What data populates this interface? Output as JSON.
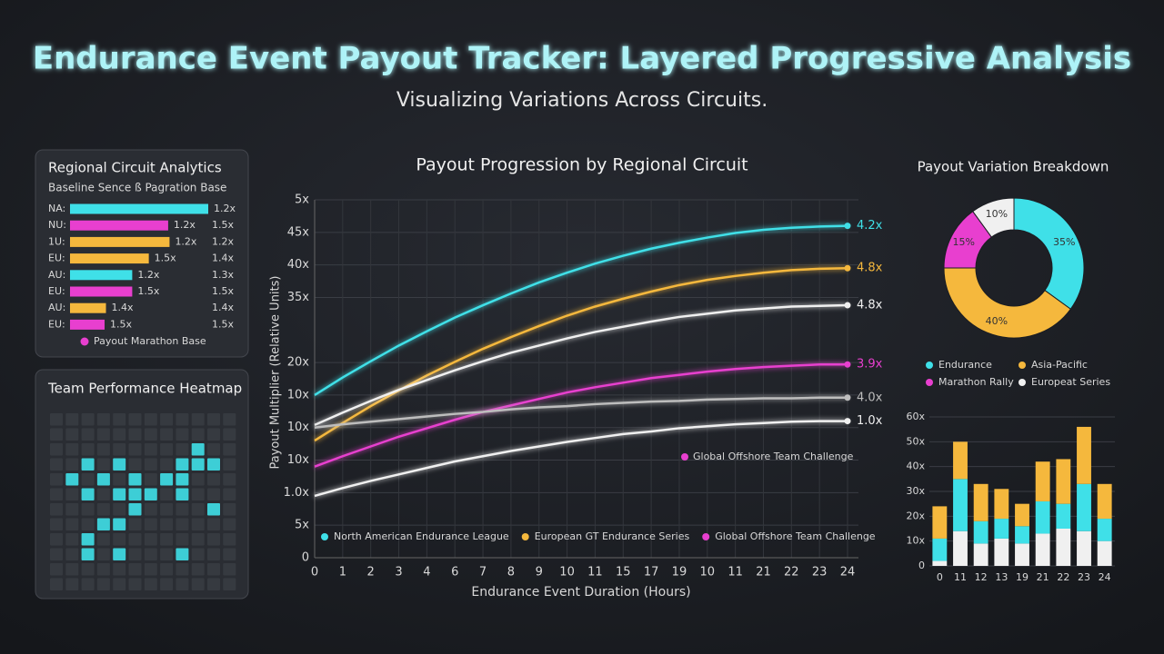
{
  "header": {
    "title": "Endurance Event Payout Tracker: Layered Progressive Analysis",
    "subtitle": "Visualizing Variations Across Circuits."
  },
  "circuit_panel": {
    "title": "Regional Circuit Analytics",
    "subtitle": "Baseline Sence ß Pagration Base",
    "xlim": [
      0,
      100
    ],
    "rows": [
      {
        "label": "NA:",
        "bar": 100,
        "color": "#3fe0e8",
        "bar_label": "1.2x"
      },
      {
        "label": "NU:",
        "bar": 71,
        "color": "#e83fcf",
        "bar_label": "1.2x",
        "value_label": "1.5x"
      },
      {
        "label": "1U:",
        "bar": 72,
        "color": "#f5b83d",
        "bar_label": "1.2x",
        "value_label": "1.2x"
      },
      {
        "label": "EU:",
        "bar": 57,
        "color": "#f5b83d",
        "bar_label": "1.5x",
        "value_label": "1.4x"
      },
      {
        "label": "AU:",
        "bar": 45,
        "color": "#3fe0e8",
        "bar_label": "1.2x",
        "value_label": "1.3x"
      },
      {
        "label": "EU:",
        "bar": 45,
        "color": "#e83fcf",
        "bar_label": "1.5x",
        "value_label": "1.5x"
      },
      {
        "label": "AU:",
        "bar": 26,
        "color": "#f5b83d",
        "bar_label": "1.4x",
        "value_label": "1.4x"
      },
      {
        "label": "EU:",
        "bar": 25,
        "color": "#e83fcf",
        "bar_label": "1.5x",
        "value_label": "1.5x"
      }
    ],
    "legend": {
      "label": "Payout Marathon Base",
      "color": "#e83fcf"
    }
  },
  "heatmap": {
    "title": "Team Performance Heatmap",
    "color": "#3fe0e8",
    "cells": [
      [
        0,
        0,
        0,
        0,
        0,
        0,
        0,
        0,
        0,
        0,
        0,
        0
      ],
      [
        0,
        0,
        0,
        0,
        0,
        0,
        0,
        0,
        0,
        0,
        0,
        0
      ],
      [
        0,
        0,
        0,
        0,
        0,
        0,
        0,
        0,
        0,
        1,
        0,
        0
      ],
      [
        0,
        0,
        1,
        0,
        1,
        0,
        0,
        0,
        1,
        1,
        1,
        0
      ],
      [
        0,
        1,
        0,
        1,
        0,
        1,
        0,
        1,
        1,
        0,
        0,
        0
      ],
      [
        0,
        0,
        1,
        0,
        1,
        1,
        1,
        0,
        1,
        0,
        0,
        0
      ],
      [
        0,
        0,
        0,
        0,
        0,
        1,
        0,
        0,
        0,
        0,
        1,
        0
      ],
      [
        0,
        0,
        0,
        1,
        1,
        0,
        0,
        0,
        0,
        0,
        0,
        0
      ],
      [
        0,
        0,
        1,
        0,
        0,
        0,
        0,
        0,
        0,
        0,
        0,
        0
      ],
      [
        0,
        0,
        1,
        0,
        1,
        0,
        0,
        0,
        1,
        0,
        0,
        0
      ],
      [
        0,
        0,
        0,
        0,
        0,
        0,
        0,
        0,
        0,
        0,
        0,
        0
      ],
      [
        0,
        0,
        0,
        0,
        0,
        0,
        0,
        0,
        0,
        0,
        0,
        0
      ]
    ]
  },
  "chart_data": [
    {
      "type": "line",
      "title": "Payout Progression by Regional Circuit",
      "x_label": "Endurance Event Duration (Hours)",
      "y_label": "Payout Multiplier (Relative Units)",
      "categories": [
        "0",
        "1",
        "2",
        "3",
        "4",
        "6",
        "7",
        "8",
        "9",
        "10",
        "11",
        "15",
        "17",
        "19",
        "10",
        "11",
        "21",
        "22",
        "23",
        "24"
      ],
      "ylim": [
        0,
        55
      ],
      "yticks": [
        {
          "value": 55,
          "label": "5x"
        },
        {
          "value": 50,
          "label": "45x"
        },
        {
          "value": 45,
          "label": "40x"
        },
        {
          "value": 40,
          "label": "35x"
        },
        {
          "value": 30,
          "label": "20x"
        },
        {
          "value": 25,
          "label": "10x"
        },
        {
          "value": 20,
          "label": "10x"
        },
        {
          "value": 15,
          "label": "10x"
        },
        {
          "value": 10,
          "label": "1.0x"
        },
        {
          "value": 5,
          "label": "5x"
        },
        0
      ],
      "grid": true,
      "series": [
        {
          "name": "North American Endurance League",
          "color": "#3fe0e8",
          "end_label": "4.2x",
          "values": [
            25,
            27.7,
            30.2,
            32.6,
            34.8,
            36.9,
            38.8,
            40.6,
            42.3,
            43.8,
            45.2,
            46.4,
            47.5,
            48.4,
            49.2,
            49.9,
            50.4,
            50.7,
            50.9,
            51
          ]
        },
        {
          "name": "European GT Endurance Series",
          "color": "#f5b83d",
          "end_label": "4.8x",
          "values": [
            18,
            20.7,
            23.3,
            25.7,
            28,
            30.1,
            32.1,
            33.9,
            35.6,
            37.2,
            38.6,
            39.8,
            40.9,
            41.9,
            42.7,
            43.3,
            43.8,
            44.2,
            44.4,
            44.5
          ]
        },
        {
          "name": null,
          "color": "#f0f0f0",
          "end_label": "4.8x",
          "values": [
            20.4,
            22.3,
            24.1,
            25.8,
            27.3,
            28.8,
            30.2,
            31.5,
            32.6,
            33.7,
            34.7,
            35.5,
            36.3,
            37,
            37.5,
            38,
            38.3,
            38.6,
            38.7,
            38.8
          ]
        },
        {
          "name": "Global Offshore Team Challenge",
          "color": "#e83fcf",
          "end_label": "3.9x",
          "values": [
            14,
            15.6,
            17.1,
            18.6,
            19.9,
            21.2,
            22.4,
            23.4,
            24.4,
            25.4,
            26.2,
            26.9,
            27.6,
            28.1,
            28.6,
            29,
            29.3,
            29.5,
            29.7,
            29.7
          ]
        },
        {
          "name": null,
          "color": "#bdbdbd",
          "end_label": "4.0x",
          "values": [
            20,
            20.5,
            20.9,
            21.3,
            21.7,
            22.1,
            22.4,
            22.8,
            23.1,
            23.3,
            23.6,
            23.8,
            24,
            24.1,
            24.3,
            24.4,
            24.5,
            24.5,
            24.6,
            24.6
          ]
        },
        {
          "name": null,
          "color": "#f0f0f0",
          "end_label": "1.0x",
          "values": [
            9.5,
            10.7,
            11.8,
            12.8,
            13.8,
            14.8,
            15.6,
            16.4,
            17.1,
            17.8,
            18.4,
            19,
            19.4,
            19.9,
            20.2,
            20.5,
            20.7,
            20.9,
            21,
            21
          ]
        }
      ],
      "annotation": {
        "text": "Global Offshore Team Challenge",
        "color": "#e83fcf"
      },
      "legend": "bottom-left"
    },
    {
      "type": "pie",
      "title": "Payout Variation Breakdown",
      "donut": true,
      "categories": [
        "Endurance",
        "Asia-Pacific",
        "Marathon Rally",
        "Europeat Series"
      ],
      "values": [
        35,
        40,
        15,
        10
      ],
      "value_labels": [
        "35%",
        "40%",
        "15%",
        "10%"
      ],
      "colors": [
        "#3fe0e8",
        "#f5b83d",
        "#e83fcf",
        "#f0f0f0"
      ]
    },
    {
      "type": "stacked_bar",
      "categories": [
        "0",
        "11",
        "12",
        "13",
        "19",
        "21",
        "22",
        "23",
        "24"
      ],
      "ylim": [
        0,
        60
      ],
      "yticks": [
        0,
        {
          "value": 10,
          "label": "10x"
        },
        {
          "value": 20,
          "label": "20x"
        },
        {
          "value": 30,
          "label": "30x"
        },
        {
          "value": 40,
          "label": "40x"
        },
        {
          "value": 50,
          "label": "50x"
        },
        {
          "value": 60,
          "label": "60x"
        }
      ],
      "series": [
        {
          "color": "#f0f0f0",
          "values": [
            2,
            14,
            9,
            11,
            9,
            13,
            15,
            14,
            10
          ]
        },
        {
          "color": "#3fe0e8",
          "values": [
            9,
            21,
            9,
            8,
            7,
            13,
            10,
            19,
            9
          ]
        },
        {
          "color": "#f5b83d",
          "values": [
            13,
            15,
            15,
            12,
            9,
            16,
            18,
            23,
            14
          ]
        }
      ]
    }
  ]
}
